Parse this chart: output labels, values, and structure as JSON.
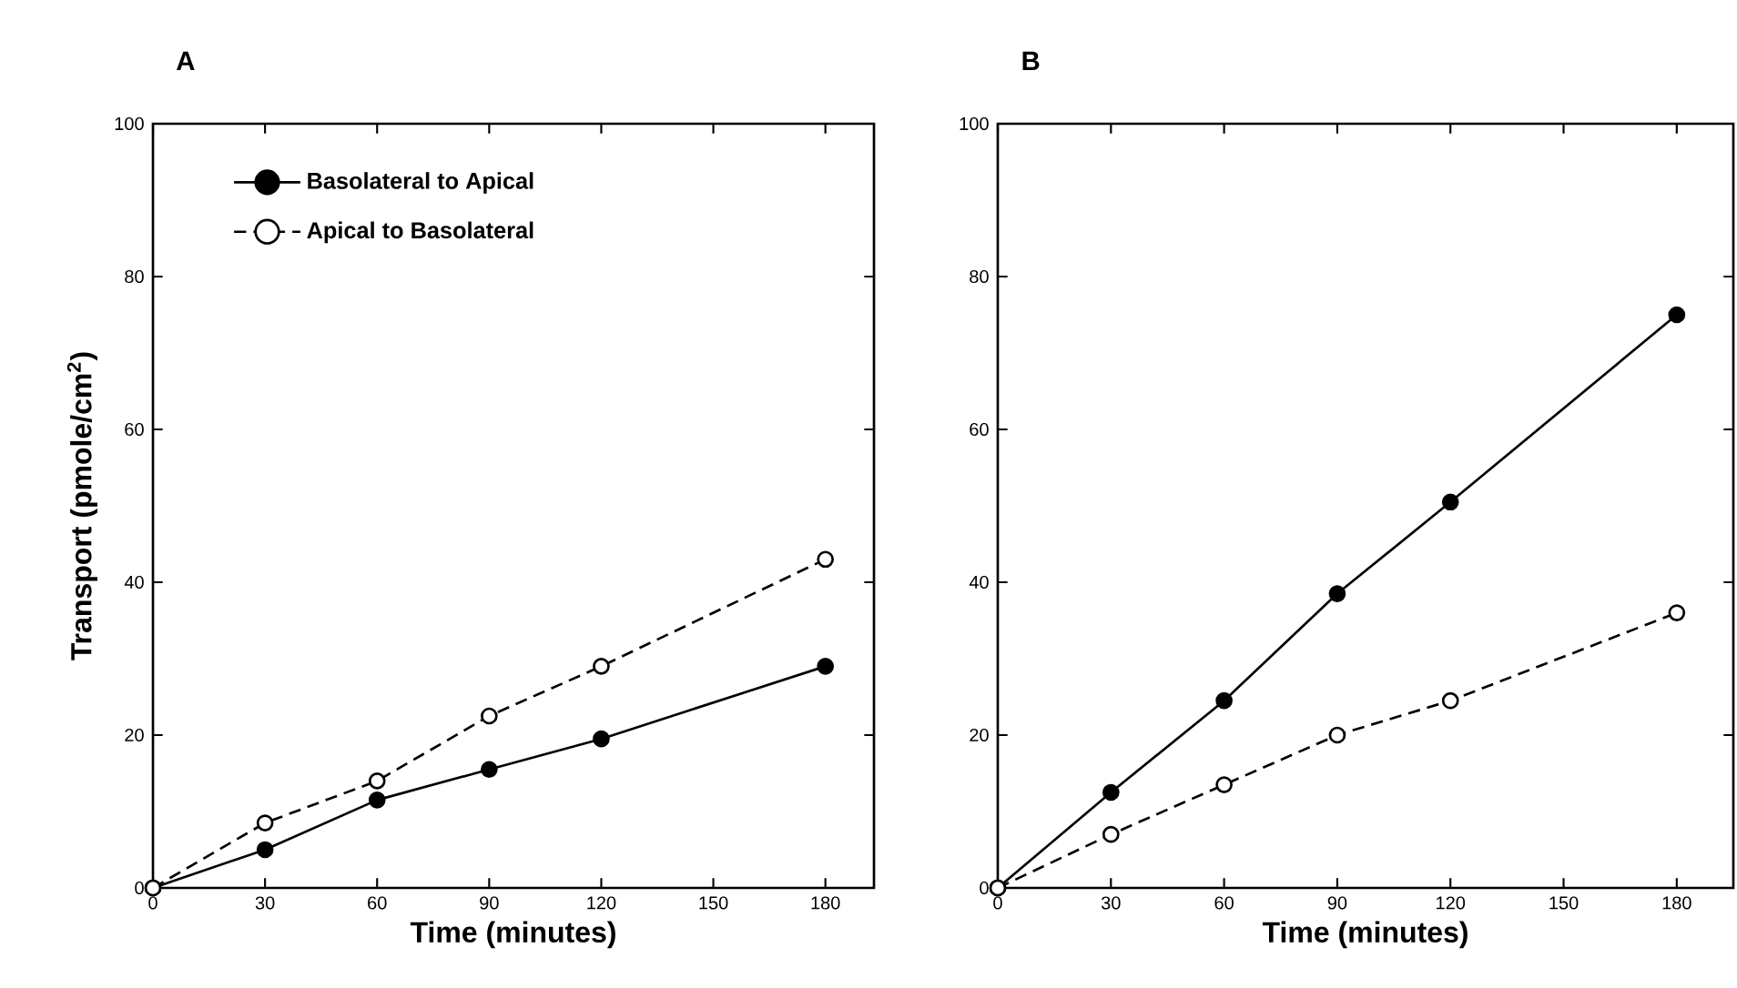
{
  "chart_data": [
    {
      "type": "line",
      "title": "A",
      "xlabel": "Time (minutes)",
      "ylabel": "Transport (pmole/cm$^{2}$)",
      "x": [
        0,
        30,
        60,
        90,
        120,
        180
      ],
      "xlim": [
        0,
        193
      ],
      "ylim": [
        0,
        100
      ],
      "xticks": [
        0,
        30,
        60,
        90,
        120,
        150,
        180
      ],
      "yticks": [
        0,
        20,
        40,
        60,
        80,
        100
      ],
      "marker": "circle",
      "legend": "top left",
      "series": [
        {
          "name": "Basolateral to Apical",
          "color": "#000000",
          "line_style": "solid",
          "values": [
            0,
            5,
            11.5,
            15.5,
            19.5,
            29
          ]
        },
        {
          "name": "Apical to Basolateral",
          "color": "#000000",
          "line_style": "dashed",
          "values": [
            0,
            8.5,
            14,
            22.5,
            29,
            43
          ]
        }
      ]
    },
    {
      "type": "line",
      "title": "B",
      "xlabel": "Time (minutes)",
      "x": [
        0,
        30,
        60,
        90,
        120,
        180
      ],
      "xlim": [
        0,
        195
      ],
      "ylim": [
        0,
        100
      ],
      "xticks": [
        0,
        30,
        60,
        90,
        120,
        150,
        180
      ],
      "yticks": [
        0,
        20,
        40,
        60,
        80,
        100
      ],
      "marker": "circle",
      "series": [
        {
          "color": "#000000",
          "line_style": "solid",
          "values": [
            0,
            12.5,
            24.5,
            38.5,
            50.5,
            75
          ]
        },
        {
          "color": "#000000",
          "line_style": "dashed",
          "values": [
            0,
            7,
            13.5,
            20,
            24.5,
            36
          ]
        }
      ]
    }
  ]
}
